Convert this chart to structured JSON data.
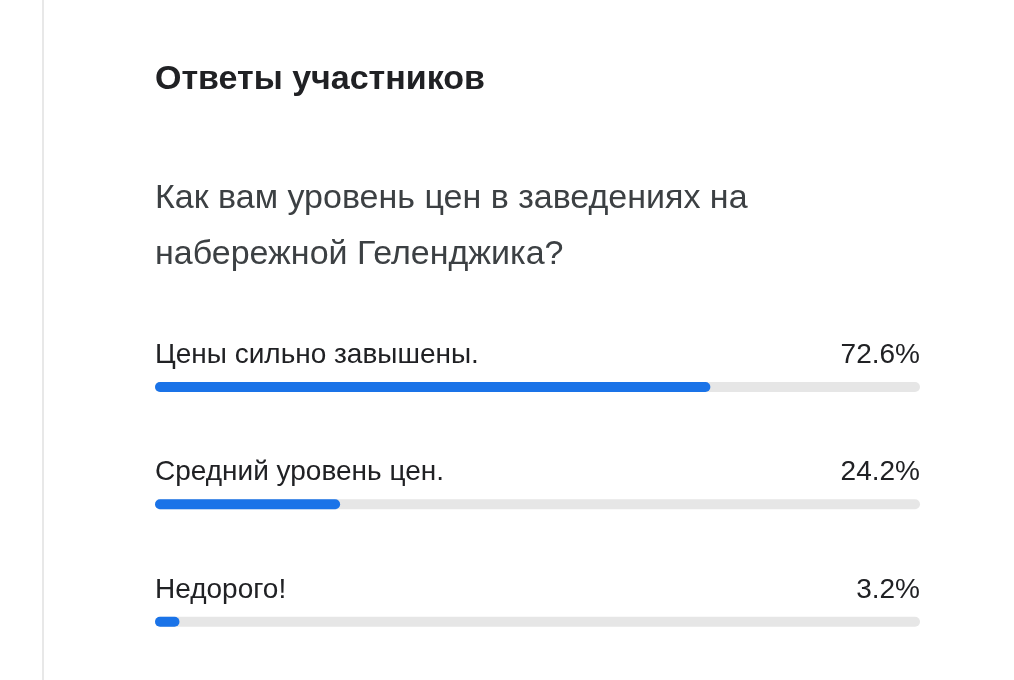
{
  "chart_data": {
    "type": "bar",
    "orientation": "horizontal",
    "title": "Ответы участников",
    "subtitle": "Как вам уровень цен в заведениях на набережной Геленджика?",
    "categories": [
      "Цены сильно завышены.",
      "Средний уровень цен.",
      "Недорого!"
    ],
    "values": [
      72.6,
      24.2,
      3.2
    ],
    "color": "#1a73e8",
    "value_labels": [
      "72.6%",
      "24.2%",
      "3.2%"
    ],
    "xlim": [
      0,
      100
    ]
  }
}
